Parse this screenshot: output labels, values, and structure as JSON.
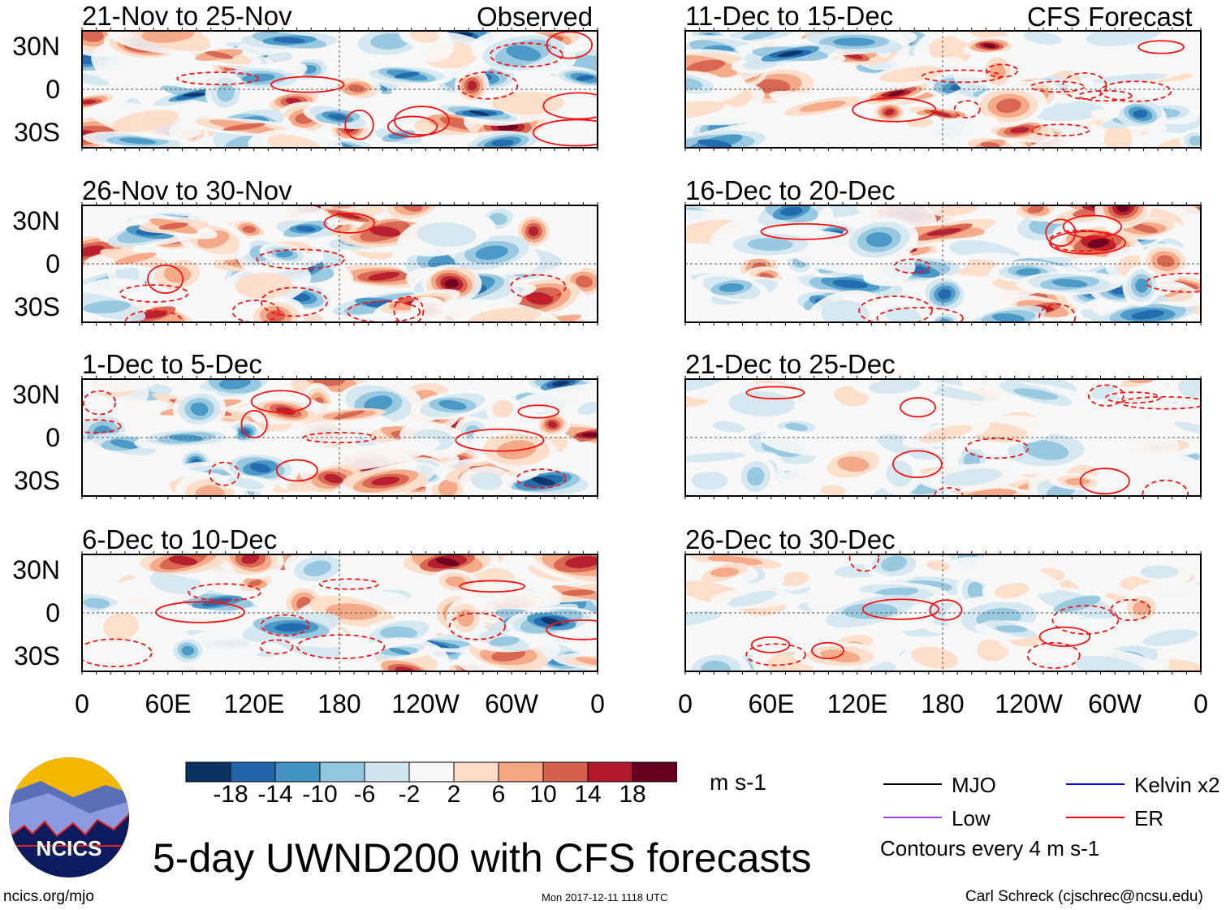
{
  "title": "5-day UWND200 with CFS forecasts",
  "left_column_label": "Observed",
  "right_column_label": "CFS Forecast",
  "panels_left": [
    "21-Nov to 25-Nov",
    "26-Nov to 30-Nov",
    "1-Dec to 5-Dec",
    "6-Dec to 10-Dec"
  ],
  "panels_right": [
    "11-Dec to 15-Dec",
    "16-Dec to 20-Dec",
    "21-Dec to 25-Dec",
    "26-Dec to 30-Dec"
  ],
  "lat_labels": [
    "30N",
    "0",
    "30S"
  ],
  "lon_labels": [
    "0",
    "60E",
    "120E",
    "180",
    "120W",
    "60W",
    "0"
  ],
  "colorbar": {
    "labels": [
      "-18",
      "-14",
      "-10",
      "-6",
      "-2",
      "2",
      "6",
      "10",
      "14",
      "18"
    ],
    "colors": [
      "#0a3263",
      "#2166ac",
      "#4393c3",
      "#92c5de",
      "#d1e5f0",
      "#f7f7f7",
      "#fddbc7",
      "#f4a582",
      "#d6604d",
      "#b2182b",
      "#67001f"
    ],
    "units": "m s-1"
  },
  "legend": [
    {
      "label": "MJO",
      "color": "#000000"
    },
    {
      "label": "Kelvin x2",
      "color": "#0000ff"
    },
    {
      "label": "Low",
      "color": "#a040ff"
    },
    {
      "label": "ER",
      "color": "#ff0000"
    }
  ],
  "contour_note": "Contours every 4 m s-1",
  "logo_text": "NCICS",
  "url": "ncics.org/mjo",
  "timestamp": "Mon 2017-12-11 1118 UTC",
  "author": "Carl Schreck (cjschrec@ncsu.edu)"
}
